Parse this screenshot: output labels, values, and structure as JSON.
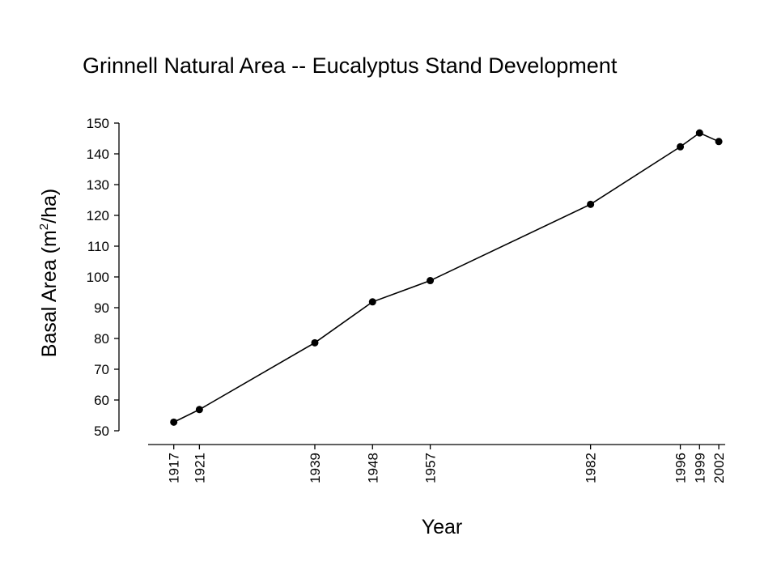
{
  "chart_data": {
    "type": "line",
    "title": "Grinnell Natural Area -- Eucalyptus Stand Development",
    "xlabel": "Year",
    "ylabel": {
      "prefix": "Basal Area (m",
      "superscript": "2",
      "suffix": "/ha)"
    },
    "ylim": [
      50,
      150
    ],
    "yticks": [
      50,
      60,
      70,
      80,
      90,
      100,
      110,
      120,
      130,
      140,
      150
    ],
    "xlim": [
      1913,
      2003
    ],
    "xticks": [
      1917,
      1921,
      1939,
      1948,
      1957,
      1982,
      1996,
      1999,
      2002
    ],
    "grid": false,
    "series": [
      {
        "x": [
          1917,
          1921,
          1939,
          1948,
          1957,
          1982,
          1996,
          1999,
          2002
        ],
        "y": [
          52.8,
          56.9,
          78.6,
          91.9,
          98.8,
          123.6,
          142.3,
          146.8,
          144.0
        ]
      }
    ]
  }
}
